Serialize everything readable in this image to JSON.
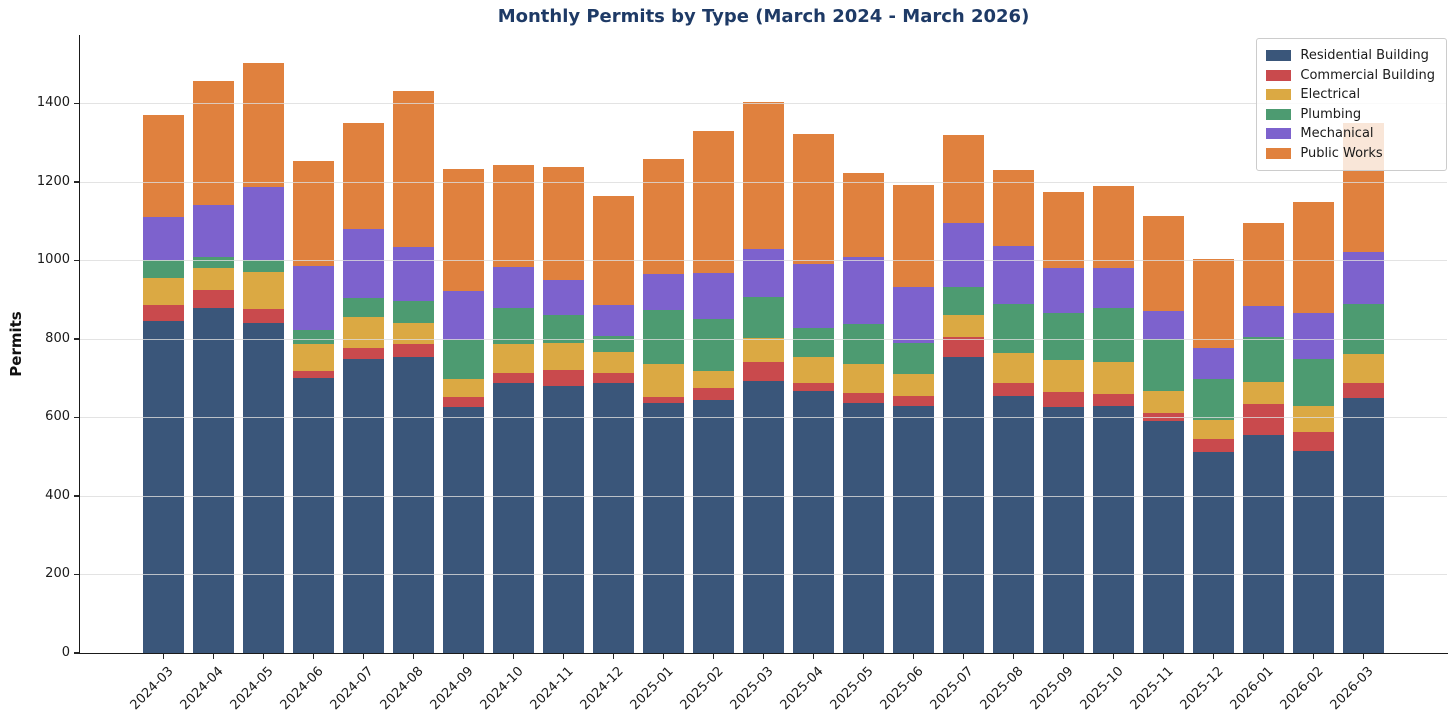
{
  "chart_data": {
    "type": "bar",
    "stacked": true,
    "title": "Monthly Permits by Type (March 2024 - March 2026)",
    "ylabel": "Permits",
    "xlabel": "",
    "grid": true,
    "legend_position": "upper right",
    "ylim": [
      0,
      1574
    ],
    "yticks": [
      0,
      200,
      400,
      600,
      800,
      1000,
      1200,
      1400
    ],
    "categories": [
      "2024-03",
      "2024-04",
      "2024-05",
      "2024-06",
      "2024-07",
      "2024-08",
      "2024-09",
      "2024-10",
      "2024-11",
      "2024-12",
      "2025-01",
      "2025-02",
      "2025-03",
      "2025-04",
      "2025-05",
      "2025-06",
      "2025-07",
      "2025-08",
      "2025-09",
      "2025-10",
      "2025-11",
      "2025-12",
      "2026-01",
      "2026-02",
      "2026-03"
    ],
    "series": [
      {
        "name": "Residential Building",
        "color": "#3A567A",
        "values": [
          846,
          878,
          840,
          700,
          748,
          753,
          627,
          688,
          680,
          688,
          637,
          644,
          693,
          668,
          637,
          630,
          753,
          654,
          627,
          629,
          592,
          513,
          555,
          515,
          649
        ]
      },
      {
        "name": "Commercial Building",
        "color": "#C94A4D",
        "values": [
          40,
          46,
          37,
          19,
          30,
          34,
          26,
          26,
          41,
          24,
          16,
          30,
          47,
          20,
          26,
          25,
          52,
          34,
          38,
          31,
          18,
          31,
          79,
          49,
          39
        ]
      },
      {
        "name": "Electrical",
        "color": "#DBA943",
        "values": [
          70,
          57,
          94,
          69,
          77,
          54,
          46,
          73,
          68,
          55,
          83,
          45,
          63,
          67,
          73,
          55,
          56,
          77,
          81,
          80,
          58,
          49,
          57,
          65,
          73
        ]
      },
      {
        "name": "Plumbing",
        "color": "#4D9B71",
        "values": [
          46,
          28,
          31,
          34,
          48,
          56,
          98,
          91,
          72,
          40,
          137,
          131,
          104,
          72,
          103,
          80,
          70,
          125,
          119,
          138,
          131,
          106,
          114,
          119,
          129
        ]
      },
      {
        "name": "Mechanical",
        "color": "#7D62CD",
        "values": [
          108,
          132,
          186,
          163,
          177,
          138,
          126,
          106,
          89,
          79,
          92,
          118,
          122,
          163,
          170,
          141,
          163,
          146,
          115,
          103,
          73,
          78,
          79,
          117,
          132
        ]
      },
      {
        "name": "Public Works",
        "color": "#E0813E",
        "values": [
          260,
          317,
          315,
          268,
          269,
          396,
          309,
          259,
          287,
          277,
          293,
          362,
          375,
          332,
          214,
          261,
          225,
          194,
          194,
          208,
          241,
          226,
          210,
          284,
          327
        ]
      }
    ],
    "bar_totals": [
      1370,
      1458,
      1503,
      1253,
      1349,
      1431,
      1232,
      1243,
      1237,
      1163,
      1258,
      1330,
      1404,
      1322,
      1223,
      1192,
      1319,
      1230,
      1174,
      1189,
      1113,
      1003,
      1094,
      1149,
      1349
    ],
    "colors": {
      "title": "#1e3a66",
      "axis_text": "#1a1a1a",
      "gridline": "#dcdcdc",
      "background": "#ffffff"
    }
  }
}
